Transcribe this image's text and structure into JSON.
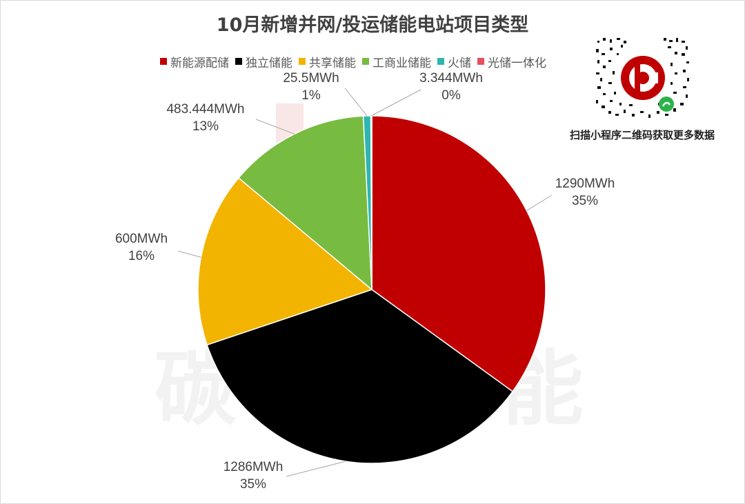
{
  "chart_data": {
    "type": "pie",
    "title": "10月新增并网/投运储能电站项目类型",
    "unit": "MWh",
    "slices": [
      {
        "name": "新能源配储",
        "value": 1290,
        "value_label": "1290MWh",
        "percent_label": "35%",
        "color": "#C00000"
      },
      {
        "name": "独立储能",
        "value": 1286,
        "value_label": "1286MWh",
        "percent_label": "35%",
        "color": "#000000"
      },
      {
        "name": "共享储能",
        "value": 600,
        "value_label": "600MWh",
        "percent_label": "16%",
        "color": "#F2B400"
      },
      {
        "name": "工商业储能",
        "value": 483.444,
        "value_label": "483.444MWh",
        "percent_label": "13%",
        "color": "#77BB41"
      },
      {
        "name": "火储",
        "value": 25.5,
        "value_label": "25.5MWh",
        "percent_label": "1%",
        "color": "#2FB5B0"
      },
      {
        "name": "光储一体化",
        "value": 3.344,
        "value_label": "3.344MWh",
        "percent_label": "0%",
        "color": "#E8505B"
      }
    ],
    "legend_position": "top"
  },
  "watermark": {
    "brand_text": "碳索储能"
  },
  "qr": {
    "caption": "扫描小程序二维码获取更多数据"
  }
}
